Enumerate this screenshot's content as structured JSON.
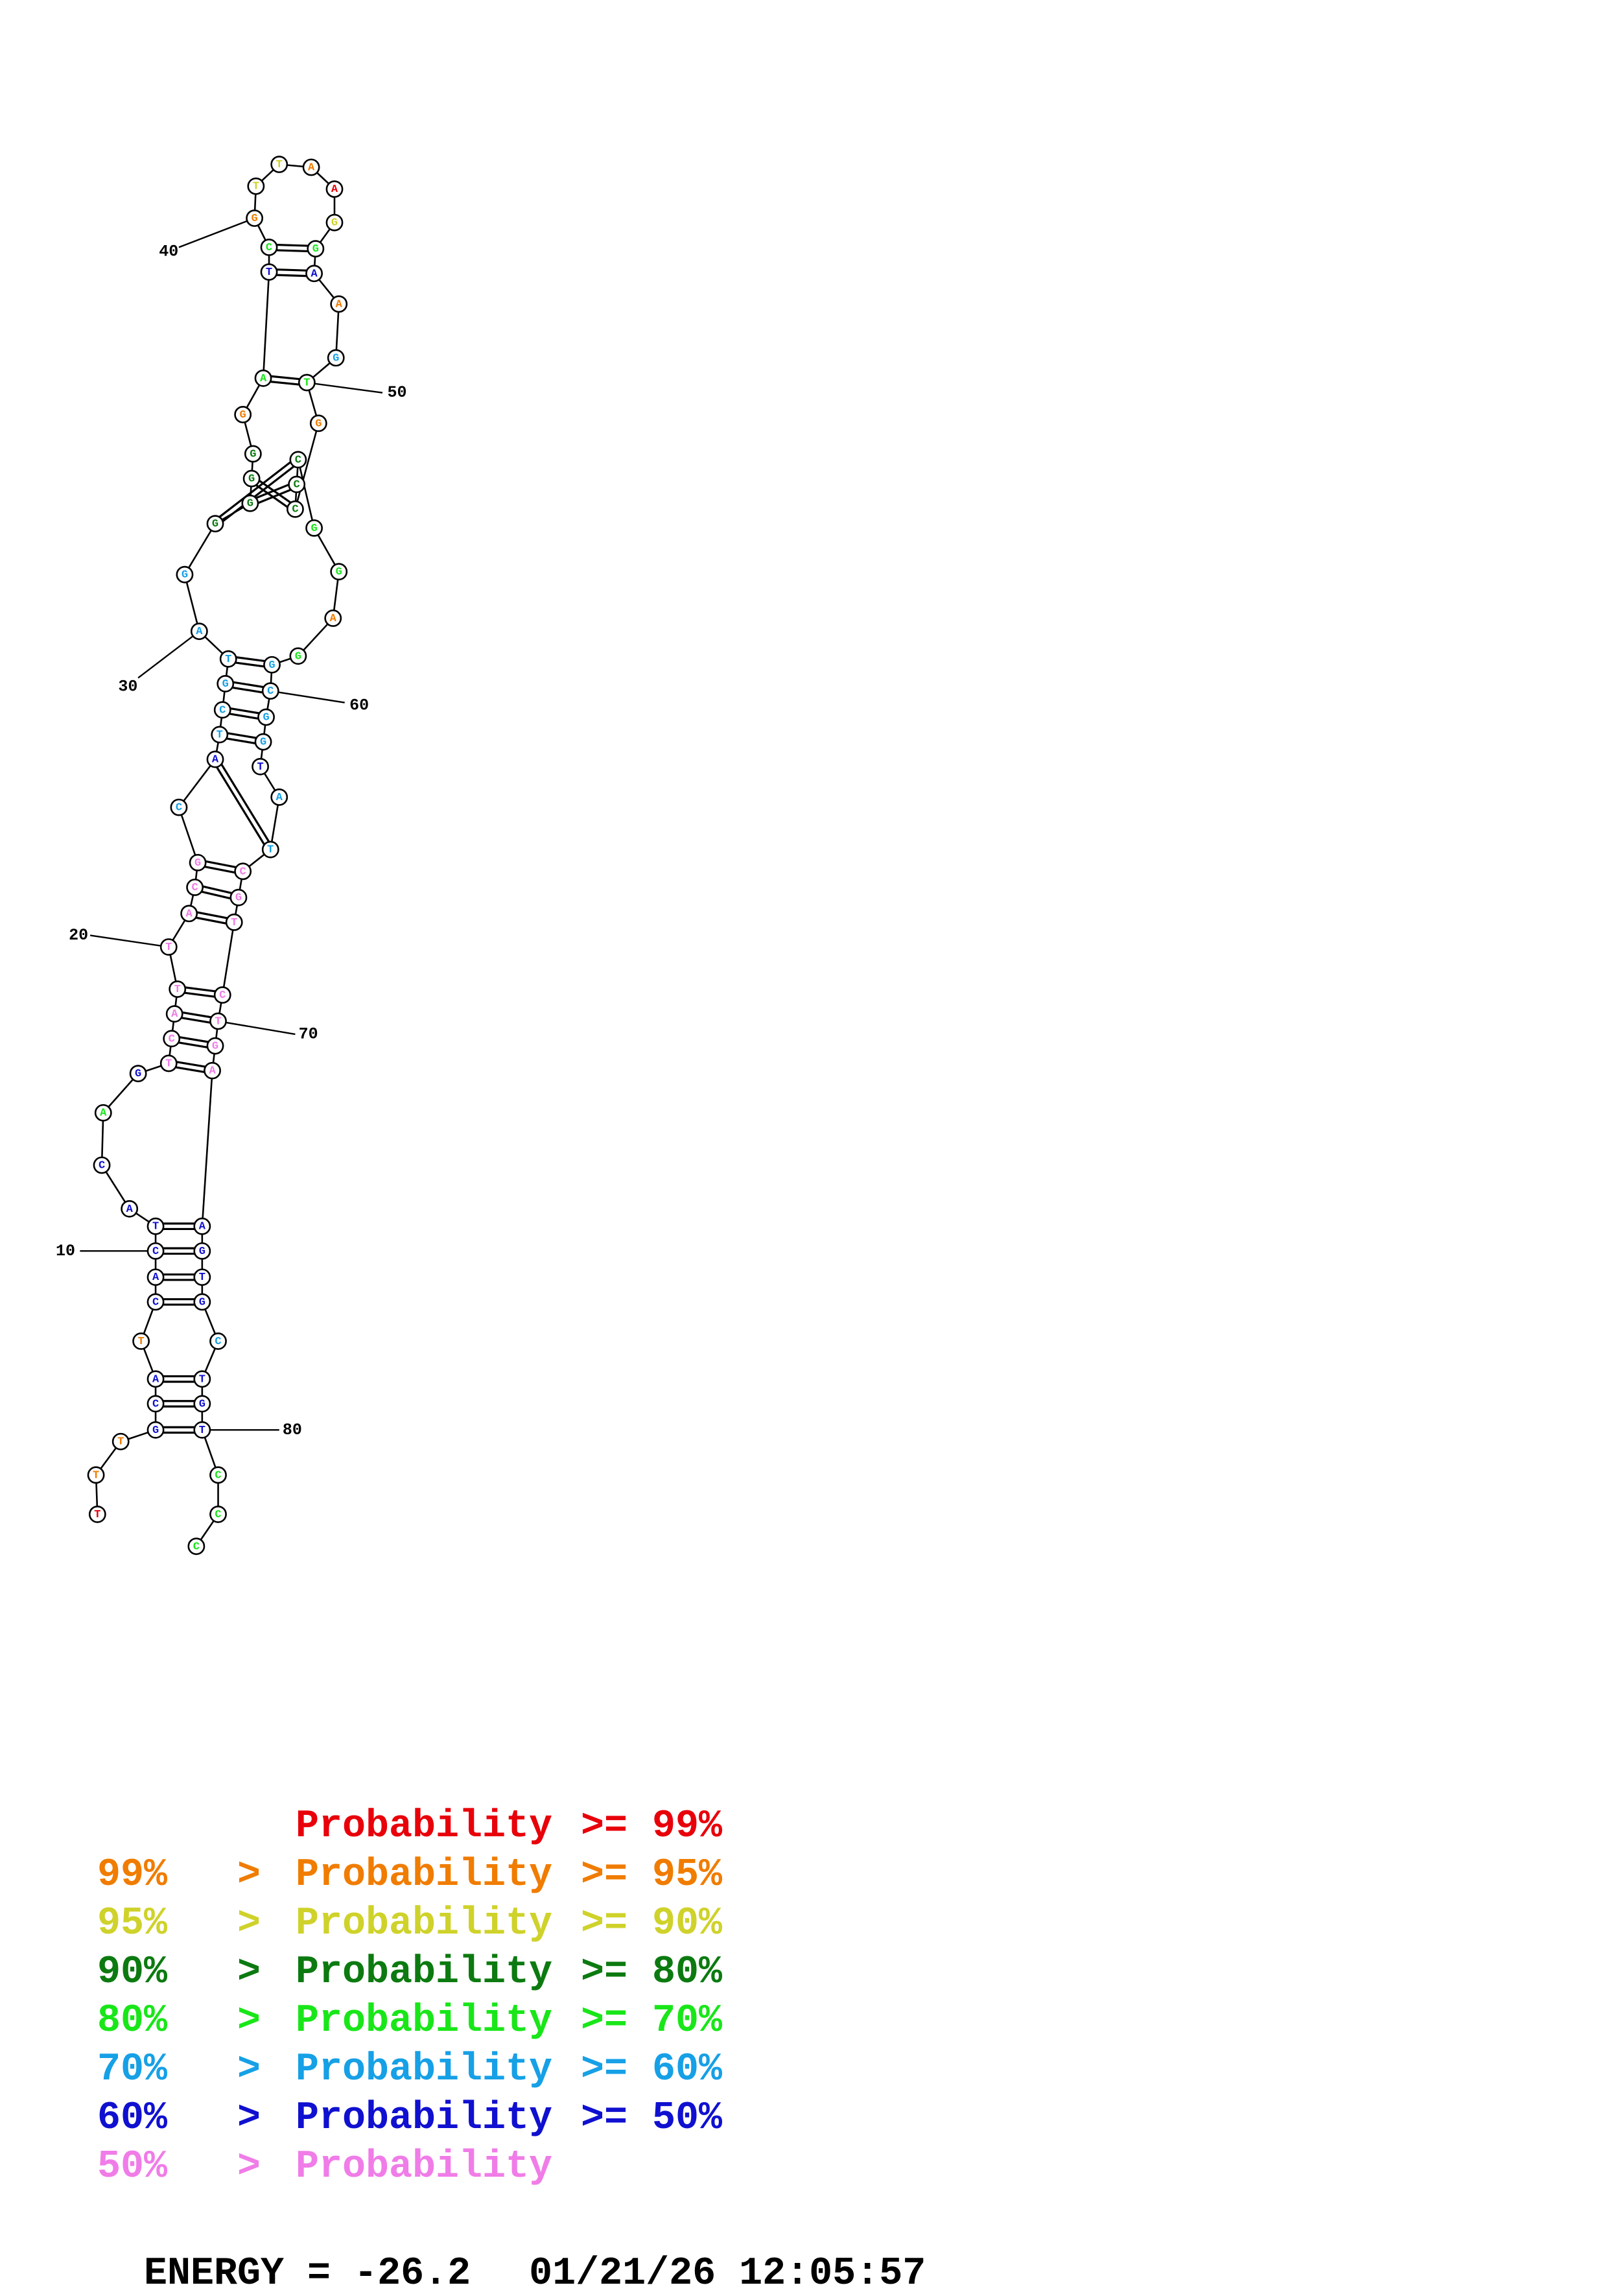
{
  "colors": {
    "p99": "#e8000a",
    "p95": "#f07c00",
    "p90": "#cfd22a",
    "p80": "#0c7a10",
    "p70": "#19e619",
    "p60": "#16a0e6",
    "p50": "#1010d0",
    "plt50": "#f07ce8"
  },
  "nucleotides": [
    {
      "n": 1,
      "b": "T",
      "c": "p99"
    },
    {
      "n": 2,
      "b": "T",
      "c": "p95"
    },
    {
      "n": 3,
      "b": "T",
      "c": "p95"
    },
    {
      "n": 4,
      "b": "G",
      "c": "p50"
    },
    {
      "n": 5,
      "b": "C",
      "c": "p50"
    },
    {
      "n": 6,
      "b": "A",
      "c": "p50"
    },
    {
      "n": 7,
      "b": "T",
      "c": "p95"
    },
    {
      "n": 8,
      "b": "C",
      "c": "p50"
    },
    {
      "n": 9,
      "b": "A",
      "c": "p50"
    },
    {
      "n": 10,
      "b": "C",
      "c": "p50"
    },
    {
      "n": 11,
      "b": "T",
      "c": "p50"
    },
    {
      "n": 12,
      "b": "A",
      "c": "p50"
    },
    {
      "n": 13,
      "b": "C",
      "c": "p50"
    },
    {
      "n": 14,
      "b": "A",
      "c": "p70"
    },
    {
      "n": 15,
      "b": "G",
      "c": "p50"
    },
    {
      "n": 16,
      "b": "T",
      "c": "plt50"
    },
    {
      "n": 17,
      "b": "C",
      "c": "plt50"
    },
    {
      "n": 18,
      "b": "A",
      "c": "plt50"
    },
    {
      "n": 19,
      "b": "T",
      "c": "plt50"
    },
    {
      "n": 20,
      "b": "T",
      "c": "plt50"
    },
    {
      "n": 21,
      "b": "A",
      "c": "plt50"
    },
    {
      "n": 22,
      "b": "C",
      "c": "plt50"
    },
    {
      "n": 23,
      "b": "G",
      "c": "plt50"
    },
    {
      "n": 24,
      "b": "C",
      "c": "p60"
    },
    {
      "n": 25,
      "b": "A",
      "c": "p50"
    },
    {
      "n": 26,
      "b": "T",
      "c": "p60"
    },
    {
      "n": 27,
      "b": "C",
      "c": "p60"
    },
    {
      "n": 28,
      "b": "G",
      "c": "p60"
    },
    {
      "n": 29,
      "b": "T",
      "c": "p60"
    },
    {
      "n": 30,
      "b": "A",
      "c": "p60"
    },
    {
      "n": 31,
      "b": "G",
      "c": "p60"
    },
    {
      "n": 32,
      "b": "G",
      "c": "p80"
    },
    {
      "n": 33,
      "b": "G",
      "c": "p80"
    },
    {
      "n": 34,
      "b": "G",
      "c": "p80"
    },
    {
      "n": 35,
      "b": "G",
      "c": "p80"
    },
    {
      "n": 36,
      "b": "G",
      "c": "p95"
    },
    {
      "n": 37,
      "b": "A",
      "c": "p70"
    },
    {
      "n": 38,
      "b": "T",
      "c": "p50"
    },
    {
      "n": 39,
      "b": "C",
      "c": "p70"
    },
    {
      "n": 40,
      "b": "G",
      "c": "p95"
    },
    {
      "n": 41,
      "b": "T",
      "c": "p90"
    },
    {
      "n": 42,
      "b": "T",
      "c": "p90"
    },
    {
      "n": 43,
      "b": "A",
      "c": "p95"
    },
    {
      "n": 44,
      "b": "A",
      "c": "p99"
    },
    {
      "n": 45,
      "b": "G",
      "c": "p90"
    },
    {
      "n": 46,
      "b": "G",
      "c": "p70"
    },
    {
      "n": 47,
      "b": "A",
      "c": "p50"
    },
    {
      "n": 48,
      "b": "A",
      "c": "p95"
    },
    {
      "n": 49,
      "b": "G",
      "c": "p60"
    },
    {
      "n": 50,
      "b": "T",
      "c": "p70"
    },
    {
      "n": 51,
      "b": "G",
      "c": "p95"
    },
    {
      "n": 52,
      "b": "C",
      "c": "p80"
    },
    {
      "n": 53,
      "b": "C",
      "c": "p80"
    },
    {
      "n": 54,
      "b": "C",
      "c": "p80"
    },
    {
      "n": 55,
      "b": "G",
      "c": "p70"
    },
    {
      "n": 56,
      "b": "G",
      "c": "p70"
    },
    {
      "n": 57,
      "b": "A",
      "c": "p95"
    },
    {
      "n": 58,
      "b": "G",
      "c": "p70"
    },
    {
      "n": 59,
      "b": "G",
      "c": "p60"
    },
    {
      "n": 60,
      "b": "C",
      "c": "p60"
    },
    {
      "n": 61,
      "b": "G",
      "c": "p60"
    },
    {
      "n": 62,
      "b": "G",
      "c": "p60"
    },
    {
      "n": 63,
      "b": "T",
      "c": "p50"
    },
    {
      "n": 64,
      "b": "A",
      "c": "p60"
    },
    {
      "n": 65,
      "b": "T",
      "c": "p60"
    },
    {
      "n": 66,
      "b": "C",
      "c": "plt50"
    },
    {
      "n": 67,
      "b": "G",
      "c": "plt50"
    },
    {
      "n": 68,
      "b": "T",
      "c": "plt50"
    },
    {
      "n": 69,
      "b": "C",
      "c": "plt50"
    },
    {
      "n": 70,
      "b": "T",
      "c": "plt50"
    },
    {
      "n": 71,
      "b": "G",
      "c": "plt50"
    },
    {
      "n": 72,
      "b": "A",
      "c": "plt50"
    },
    {
      "n": 73,
      "b": "A",
      "c": "p50"
    },
    {
      "n": 74,
      "b": "G",
      "c": "p50"
    },
    {
      "n": 75,
      "b": "T",
      "c": "p50"
    },
    {
      "n": 76,
      "b": "G",
      "c": "p50"
    },
    {
      "n": 77,
      "b": "C",
      "c": "p60"
    },
    {
      "n": 78,
      "b": "T",
      "c": "p50"
    },
    {
      "n": 79,
      "b": "G",
      "c": "p50"
    },
    {
      "n": 80,
      "b": "T",
      "c": "p50"
    },
    {
      "n": 81,
      "b": "C",
      "c": "p70"
    },
    {
      "n": 82,
      "b": "C",
      "c": "p70"
    },
    {
      "n": 83,
      "b": "C",
      "c": "p70"
    }
  ],
  "pairs": [
    [
      4,
      80
    ],
    [
      5,
      79
    ],
    [
      6,
      78
    ],
    [
      8,
      76
    ],
    [
      9,
      75
    ],
    [
      10,
      74
    ],
    [
      11,
      73
    ],
    [
      16,
      72
    ],
    [
      17,
      71
    ],
    [
      18,
      70
    ],
    [
      19,
      69
    ],
    [
      21,
      68
    ],
    [
      22,
      67
    ],
    [
      23,
      66
    ],
    [
      25,
      65
    ],
    [
      26,
      62
    ],
    [
      27,
      61
    ],
    [
      28,
      60
    ],
    [
      29,
      59
    ],
    [
      32,
      54
    ],
    [
      33,
      53
    ],
    [
      34,
      52
    ],
    [
      37,
      50
    ],
    [
      38,
      47
    ],
    [
      39,
      46
    ]
  ],
  "position_labels": [
    {
      "n": 10,
      "text": "10"
    },
    {
      "n": 20,
      "text": "20"
    },
    {
      "n": 30,
      "text": "30"
    },
    {
      "n": 40,
      "text": "40"
    },
    {
      "n": 50,
      "text": "50"
    },
    {
      "n": 60,
      "text": "60"
    },
    {
      "n": 70,
      "text": "70"
    },
    {
      "n": 80,
      "text": "80"
    }
  ],
  "legend": [
    {
      "lo": "",
      "gt": "",
      "word": "Probability",
      "ge": ">=",
      "hi": "99%",
      "c": "p99"
    },
    {
      "lo": "99%",
      "gt": ">",
      "word": "Probability",
      "ge": ">=",
      "hi": "95%",
      "c": "p95"
    },
    {
      "lo": "95%",
      "gt": ">",
      "word": "Probability",
      "ge": ">=",
      "hi": "90%",
      "c": "p90"
    },
    {
      "lo": "90%",
      "gt": ">",
      "word": "Probability",
      "ge": ">=",
      "hi": "80%",
      "c": "p80"
    },
    {
      "lo": "80%",
      "gt": ">",
      "word": "Probability",
      "ge": ">=",
      "hi": "70%",
      "c": "p70"
    },
    {
      "lo": "70%",
      "gt": ">",
      "word": "Probability",
      "ge": ">=",
      "hi": "60%",
      "c": "p60"
    },
    {
      "lo": "60%",
      "gt": ">",
      "word": "Probability",
      "ge": ">=",
      "hi": "50%",
      "c": "p50"
    },
    {
      "lo": "50%",
      "gt": ">",
      "word": "Probability",
      "ge": "",
      "hi": "",
      "c": "plt50"
    }
  ],
  "footer": {
    "energy": "ENERGY = -26.2",
    "date": "01/21/26",
    "time": "12:05:57"
  }
}
